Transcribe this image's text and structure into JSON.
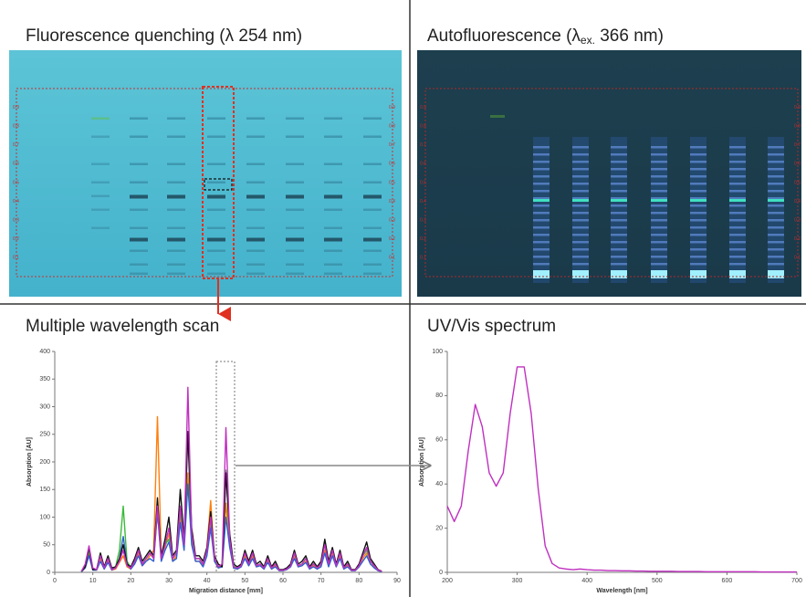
{
  "plates": {
    "quenching": {
      "title": "Fluorescence quenching (λ 254 nm)",
      "rf_ticks": [
        0.1,
        0.2,
        0.3,
        0.4,
        0.5,
        0.6,
        0.7,
        0.8,
        0.9
      ]
    },
    "autofluorescence": {
      "title_prefix": "Autofluorescence (λ",
      "title_subscript": "ex.",
      "title_suffix": " 366 nm)",
      "rf_ticks": [
        0.1,
        0.2,
        0.3,
        0.4,
        0.5,
        0.6,
        0.7,
        0.8,
        0.9
      ]
    }
  },
  "chart_data": [
    {
      "type": "line",
      "title": "Multiple wavelength scan",
      "x_label": "Migration distance [mm]",
      "y_label": "Absorption [AU]",
      "xlim": [
        0,
        90
      ],
      "xticks": [
        0,
        10,
        20,
        30,
        40,
        50,
        60,
        70,
        80,
        90
      ],
      "ylim": [
        0,
        400
      ],
      "yticks": [
        0,
        50,
        100,
        150,
        200,
        250,
        300,
        350,
        400
      ],
      "x": [
        7,
        8,
        9,
        10,
        11,
        12,
        13,
        14,
        15,
        16,
        17,
        18,
        19,
        20,
        21,
        22,
        23,
        24,
        25,
        26,
        27,
        28,
        29,
        30,
        31,
        32,
        33,
        34,
        35,
        36,
        37,
        38,
        39,
        40,
        41,
        42,
        43,
        44,
        45,
        46,
        47,
        48,
        49,
        50,
        51,
        52,
        53,
        54,
        55,
        56,
        57,
        58,
        59,
        60,
        61,
        62,
        63,
        64,
        65,
        66,
        67,
        68,
        69,
        70,
        71,
        72,
        73,
        74,
        75,
        76,
        77,
        78,
        79,
        80,
        81,
        82,
        83,
        84,
        85,
        86
      ],
      "series": [
        {
          "color": "#ff7f0e",
          "values": [
            1,
            8,
            35,
            5,
            4,
            25,
            6,
            20,
            4,
            6,
            18,
            30,
            10,
            6,
            18,
            35,
            12,
            20,
            30,
            40,
            282,
            30,
            45,
            70,
            20,
            30,
            100,
            45,
            180,
            60,
            20,
            20,
            12,
            45,
            130,
            20,
            8,
            12,
            125,
            50,
            8,
            6,
            10,
            30,
            12,
            30,
            10,
            12,
            6,
            20,
            6,
            12,
            3,
            3,
            5,
            10,
            30,
            10,
            12,
            20,
            6,
            12,
            6,
            12,
            40,
            12,
            35,
            10,
            30,
            6,
            12,
            3,
            3,
            10,
            25,
            35,
            15,
            10,
            3,
            1
          ]
        },
        {
          "color": "#3aba3a",
          "values": [
            1,
            10,
            40,
            5,
            5,
            30,
            8,
            25,
            6,
            10,
            40,
            120,
            20,
            8,
            20,
            40,
            15,
            25,
            35,
            25,
            110,
            25,
            50,
            60,
            25,
            35,
            110,
            50,
            250,
            60,
            25,
            25,
            15,
            40,
            90,
            25,
            10,
            15,
            185,
            55,
            10,
            8,
            12,
            35,
            15,
            35,
            12,
            15,
            8,
            25,
            8,
            15,
            4,
            4,
            6,
            12,
            35,
            12,
            15,
            25,
            8,
            15,
            8,
            15,
            55,
            15,
            40,
            12,
            35,
            8,
            15,
            4,
            4,
            12,
            30,
            40,
            20,
            12,
            4,
            1
          ]
        },
        {
          "color": "#3060d0",
          "values": [
            1,
            8,
            30,
            4,
            4,
            20,
            6,
            18,
            4,
            8,
            25,
            65,
            15,
            6,
            15,
            30,
            12,
            20,
            25,
            20,
            110,
            20,
            40,
            55,
            20,
            25,
            90,
            40,
            160,
            50,
            20,
            20,
            10,
            30,
            80,
            20,
            8,
            10,
            100,
            45,
            8,
            6,
            10,
            25,
            12,
            25,
            10,
            12,
            6,
            18,
            6,
            10,
            3,
            3,
            5,
            10,
            25,
            10,
            12,
            18,
            6,
            10,
            6,
            10,
            35,
            10,
            30,
            10,
            25,
            6,
            10,
            3,
            3,
            10,
            20,
            30,
            15,
            8,
            3,
            1
          ]
        },
        {
          "color": "#111111",
          "values": [
            2,
            10,
            45,
            5,
            5,
            35,
            10,
            30,
            8,
            10,
            25,
            50,
            15,
            10,
            25,
            45,
            20,
            30,
            40,
            30,
            135,
            30,
            60,
            100,
            30,
            40,
            150,
            60,
            255,
            80,
            30,
            30,
            20,
            45,
            110,
            30,
            15,
            10,
            180,
            70,
            15,
            10,
            15,
            40,
            20,
            40,
            15,
            20,
            10,
            30,
            10,
            20,
            5,
            5,
            8,
            15,
            40,
            15,
            20,
            30,
            10,
            20,
            10,
            20,
            60,
            20,
            45,
            15,
            40,
            10,
            20,
            5,
            5,
            15,
            35,
            55,
            25,
            15,
            5,
            2
          ]
        },
        {
          "color": "#c030c0",
          "values": [
            2,
            15,
            48,
            8,
            5,
            30,
            8,
            25,
            5,
            8,
            20,
            40,
            12,
            8,
            20,
            40,
            15,
            25,
            35,
            25,
            120,
            25,
            50,
            80,
            25,
            35,
            120,
            50,
            335,
            70,
            25,
            25,
            15,
            40,
            100,
            25,
            10,
            15,
            262,
            60,
            10,
            8,
            12,
            35,
            15,
            35,
            12,
            15,
            8,
            25,
            8,
            15,
            4,
            4,
            6,
            12,
            35,
            12,
            15,
            25,
            8,
            15,
            8,
            15,
            50,
            15,
            40,
            12,
            35,
            8,
            15,
            4,
            4,
            12,
            30,
            45,
            20,
            12,
            4,
            2
          ]
        }
      ]
    },
    {
      "type": "line",
      "title": "UV/Vis spectrum",
      "x_label": "Wavelength [nm]",
      "y_label": "Absorption [AU]",
      "xlim": [
        200,
        700
      ],
      "xticks": [
        200,
        300,
        400,
        500,
        600,
        700
      ],
      "ylim": [
        0,
        100
      ],
      "yticks": [
        0,
        20,
        40,
        60,
        80,
        100
      ],
      "x": [
        200,
        210,
        220,
        230,
        240,
        250,
        260,
        270,
        280,
        290,
        300,
        310,
        320,
        330,
        340,
        350,
        360,
        370,
        380,
        390,
        400,
        410,
        420,
        430,
        440,
        450,
        460,
        470,
        480,
        490,
        500,
        510,
        520,
        530,
        540,
        550,
        560,
        570,
        580,
        590,
        600,
        610,
        620,
        630,
        640,
        650,
        660,
        670,
        680,
        690,
        700
      ],
      "series": [
        {
          "color": "#c030c0",
          "values": [
            30,
            23,
            30,
            55,
            76,
            66,
            45,
            39,
            45,
            72,
            93,
            93,
            72,
            38,
            12,
            4,
            2,
            1.5,
            1.2,
            1.5,
            1.2,
            1,
            1,
            0.8,
            0.8,
            0.7,
            0.7,
            0.6,
            0.6,
            0.5,
            0.5,
            0.5,
            0.5,
            0.4,
            0.4,
            0.4,
            0.4,
            0.3,
            0.3,
            0.3,
            0.3,
            0.3,
            0.3,
            0.3,
            0.3,
            0.2,
            0.2,
            0.2,
            0.2,
            0.2,
            0.2
          ]
        }
      ]
    }
  ]
}
